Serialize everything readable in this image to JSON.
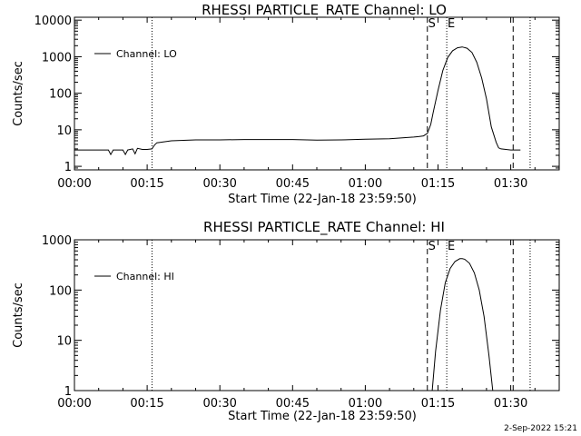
{
  "chart_data": [
    {
      "type": "line",
      "title": "RHESSI PARTICLE_RATE Channel: LO",
      "xlabel": "Start Time (22-Jan-18 23:59:50)",
      "ylabel": "Counts/sec",
      "ylog": true,
      "ylim": [
        0.8,
        12000
      ],
      "xlim_min": [
        0,
        100
      ],
      "xticks": [
        {
          "v": 0,
          "label": "00:00"
        },
        {
          "v": 15,
          "label": "00:15"
        },
        {
          "v": 30,
          "label": "00:30"
        },
        {
          "v": 45,
          "label": "00:45"
        },
        {
          "v": 60,
          "label": "01:00"
        },
        {
          "v": 75,
          "label": "01:15"
        },
        {
          "v": 90,
          "label": "01:30"
        }
      ],
      "yticks": [
        {
          "v": 1,
          "label": "1"
        },
        {
          "v": 10,
          "label": "10"
        },
        {
          "v": 100,
          "label": "100"
        },
        {
          "v": 1000,
          "label": "1000"
        },
        {
          "v": 10000,
          "label": "10000"
        }
      ],
      "legend": "Channel: LO",
      "legend_position": "top-left",
      "markers": [
        {
          "x": 72.8,
          "style": "dashed",
          "label": "S"
        },
        {
          "x": 76.8,
          "style": "dotted",
          "label": "E"
        },
        {
          "x": 90.5,
          "style": "dashed",
          "label": ""
        },
        {
          "x": 16.0,
          "style": "dotted",
          "label": ""
        },
        {
          "x": 94.0,
          "style": "dotted",
          "label": ""
        }
      ],
      "series": [
        {
          "x": [
            0,
            1,
            4,
            7,
            7.5,
            8,
            9,
            10,
            10.5,
            11,
            12,
            12.5,
            13,
            14,
            15,
            16,
            16.5,
            17,
            20,
            25,
            30,
            35,
            40,
            45,
            50,
            55,
            60,
            65,
            70,
            71,
            72,
            72.8,
            73.5,
            74,
            75,
            76,
            77,
            78,
            79,
            80,
            81,
            82,
            83,
            84,
            85,
            86,
            87,
            87.5,
            88,
            89,
            90,
            91,
            92
          ],
          "y": [
            2.8,
            2.8,
            2.8,
            2.8,
            2.1,
            2.8,
            2.8,
            2.8,
            2.1,
            2.8,
            3.0,
            2.2,
            3.1,
            2.9,
            2.9,
            3.0,
            3.8,
            4.4,
            5.0,
            5.3,
            5.3,
            5.4,
            5.4,
            5.4,
            5.2,
            5.3,
            5.5,
            5.7,
            6.3,
            6.5,
            6.8,
            8.0,
            14,
            30,
            120,
            420,
            950,
            1450,
            1750,
            1850,
            1700,
            1300,
            700,
            260,
            70,
            12,
            4.5,
            3.2,
            3.0,
            2.9,
            2.8,
            2.8,
            2.8
          ]
        }
      ]
    },
    {
      "type": "line",
      "title": "RHESSI PARTICLE_RATE Channel: HI",
      "xlabel": "Start Time (22-Jan-18 23:59:50)",
      "ylabel": "Counts/sec",
      "ylog": true,
      "ylim": [
        1,
        1000
      ],
      "xlim_min": [
        0,
        100
      ],
      "xticks": [
        {
          "v": 0,
          "label": "00:00"
        },
        {
          "v": 15,
          "label": "00:15"
        },
        {
          "v": 30,
          "label": "00:30"
        },
        {
          "v": 45,
          "label": "00:45"
        },
        {
          "v": 60,
          "label": "01:00"
        },
        {
          "v": 75,
          "label": "01:15"
        },
        {
          "v": 90,
          "label": "01:30"
        }
      ],
      "yticks": [
        {
          "v": 1,
          "label": "1"
        },
        {
          "v": 10,
          "label": "10"
        },
        {
          "v": 100,
          "label": "100"
        },
        {
          "v": 1000,
          "label": "1000"
        }
      ],
      "legend": "Channel: HI",
      "legend_position": "top-left",
      "markers": [
        {
          "x": 72.8,
          "style": "dashed",
          "label": "S"
        },
        {
          "x": 76.8,
          "style": "dotted",
          "label": "E"
        },
        {
          "x": 90.5,
          "style": "dashed",
          "label": ""
        },
        {
          "x": 16.0,
          "style": "dotted",
          "label": ""
        },
        {
          "x": 94.0,
          "style": "dotted",
          "label": ""
        }
      ],
      "series": [
        {
          "x": [
            73.8,
            74.5,
            75.5,
            76.5,
            77.5,
            78.5,
            79.5,
            80,
            80.5,
            81.5,
            82.5,
            83.5,
            84.5,
            85.5,
            86.3
          ],
          "y": [
            1,
            6,
            40,
            140,
            270,
            370,
            420,
            420,
            410,
            340,
            220,
            100,
            30,
            5,
            1
          ]
        }
      ]
    }
  ],
  "footer": {
    "timestamp": "2-Sep-2022 15:21"
  }
}
